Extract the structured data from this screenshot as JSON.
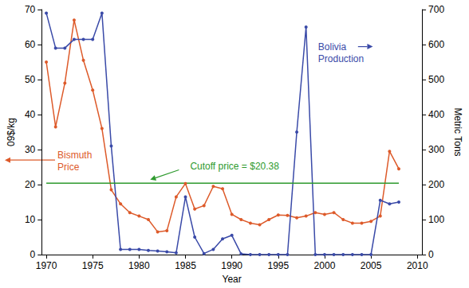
{
  "chart_data": {
    "type": "line",
    "x_label": "Year",
    "y_label": "09$/kg",
    "y2_label": "Metric Tons",
    "x": [
      1970,
      1971,
      1972,
      1973,
      1974,
      1975,
      1976,
      1977,
      1978,
      1979,
      1980,
      1981,
      1982,
      1983,
      1984,
      1985,
      1986,
      1987,
      1988,
      1989,
      1990,
      1991,
      1992,
      1993,
      1994,
      1995,
      1996,
      1997,
      1998,
      1999,
      2000,
      2001,
      2002,
      2003,
      2004,
      2005,
      2006,
      2007,
      2008
    ],
    "series": [
      {
        "name": "Bismuth Price",
        "color": "#dd5a2a",
        "marker": "circle",
        "line_style": "solid",
        "values": [
          55,
          36.5,
          49,
          67,
          55.5,
          47,
          36,
          18.5,
          14.5,
          12,
          11,
          10,
          6.5,
          6.8,
          16.5,
          20.3,
          13,
          14,
          19.5,
          18.8,
          11.5,
          10,
          9,
          8.5,
          10,
          11.3,
          11.2,
          10.5,
          11,
          12,
          11.5,
          12,
          10,
          9,
          9,
          9.5,
          11,
          29.5,
          24.5
        ]
      },
      {
        "name": "Bolivia Production",
        "color": "#3a4aa8",
        "marker": "circle",
        "line_style": "solid",
        "axis": "y2",
        "values": [
          690,
          590,
          590,
          615,
          615,
          615,
          690,
          310,
          15,
          15,
          15,
          12,
          10,
          8,
          5,
          165,
          50,
          3,
          15,
          45,
          55,
          2,
          0,
          0,
          0,
          0,
          0,
          350,
          650,
          0,
          0,
          0,
          0,
          0,
          0,
          0,
          155,
          145,
          150
        ]
      },
      {
        "name": "Cutoff price = $20.38",
        "color": "#2e9a2e",
        "marker": "none",
        "line_style": "solid",
        "values": [
          20.38,
          20.38,
          20.38,
          20.38,
          20.38,
          20.38,
          20.38,
          20.38,
          20.38,
          20.38,
          20.38,
          20.38,
          20.38,
          20.38,
          20.38,
          20.38,
          20.38,
          20.38,
          20.38,
          20.38,
          20.38,
          20.38,
          20.38,
          20.38,
          20.38,
          20.38,
          20.38,
          20.38,
          20.38,
          20.38,
          20.38,
          20.38,
          20.38,
          20.38,
          20.38,
          20.38,
          20.38,
          20.38,
          20.38
        ]
      }
    ],
    "xlim": [
      1969.5,
      2010.5
    ],
    "xticks": [
      1970,
      1975,
      1980,
      1985,
      1990,
      1995,
      2000,
      2005,
      2010
    ],
    "ylim": [
      0,
      70
    ],
    "yticks": [
      0,
      10,
      20,
      30,
      40,
      50,
      60,
      70
    ],
    "y2lim": [
      0,
      700
    ],
    "y2ticks": [
      0,
      100,
      200,
      300,
      400,
      500,
      600,
      700
    ],
    "grid": false
  }
}
